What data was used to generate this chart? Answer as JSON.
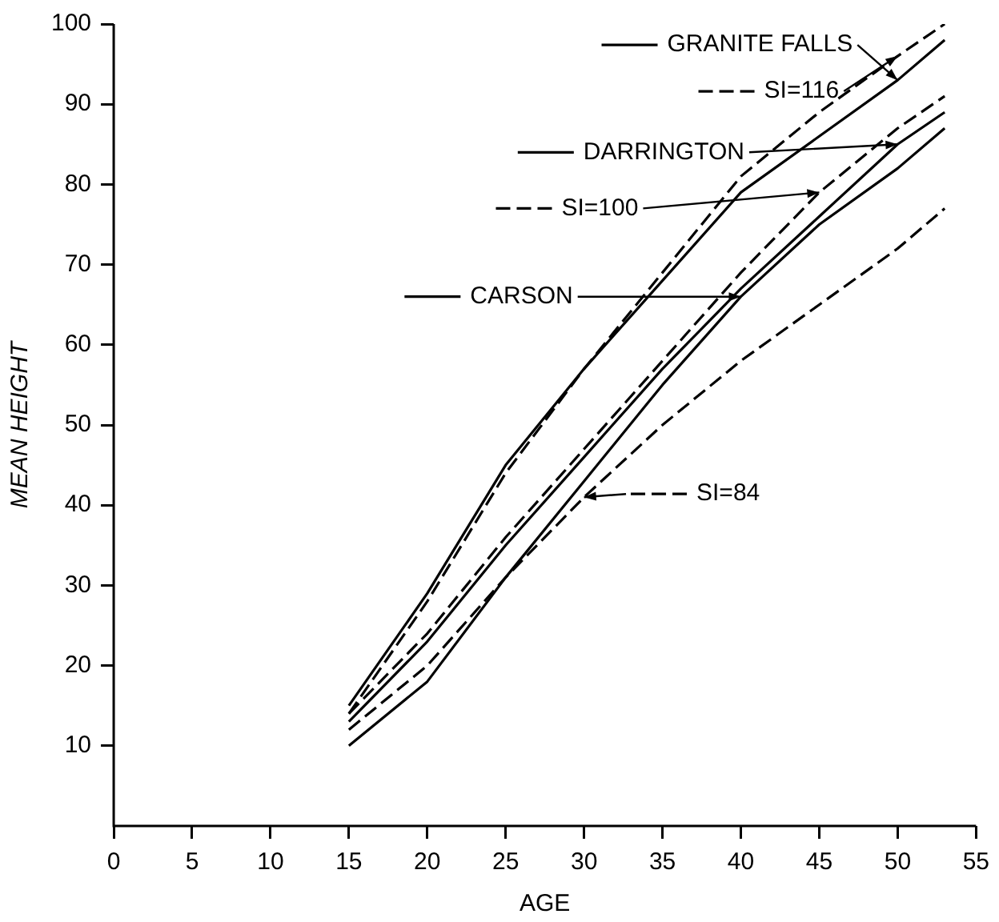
{
  "chart_data": {
    "type": "line",
    "xlabel": "AGE",
    "ylabel": "MEAN HEIGHT",
    "x": [
      15,
      20,
      25,
      30,
      35,
      40,
      45,
      50,
      53
    ],
    "series": [
      {
        "name": "GRANITE FALLS",
        "color": "#000000",
        "line_style": "solid",
        "values": [
          15,
          29,
          45,
          57,
          68,
          79,
          86,
          93,
          98
        ]
      },
      {
        "name": "SI=116",
        "color": "#000000",
        "line_style": "dashed",
        "values": [
          14,
          28,
          44,
          57,
          69,
          81,
          89,
          96,
          100
        ]
      },
      {
        "name": "DARRINGTON",
        "color": "#000000",
        "line_style": "solid",
        "values": [
          13,
          23,
          35,
          46,
          57,
          67,
          76,
          85,
          89
        ]
      },
      {
        "name": "SI=100",
        "color": "#000000",
        "line_style": "dashed",
        "values": [
          14,
          24,
          36,
          47,
          58,
          69,
          79,
          87,
          91
        ]
      },
      {
        "name": "CARSON",
        "color": "#000000",
        "line_style": "solid",
        "values": [
          10,
          18,
          31,
          43,
          55,
          66,
          75,
          82,
          87
        ]
      },
      {
        "name": "SI=84",
        "color": "#000000",
        "line_style": "dashed",
        "values": [
          12,
          20,
          31,
          41,
          50,
          58,
          65,
          72,
          77
        ]
      }
    ],
    "xlim": [
      0,
      55
    ],
    "xticks": [
      0,
      5,
      10,
      15,
      20,
      25,
      30,
      35,
      40,
      45,
      50,
      55
    ],
    "ylim": [
      0,
      100
    ],
    "yticks": [
      10,
      20,
      30,
      40,
      50,
      60,
      70,
      80,
      90,
      100
    ],
    "grid": false,
    "legend": "top right",
    "marker": "none"
  }
}
